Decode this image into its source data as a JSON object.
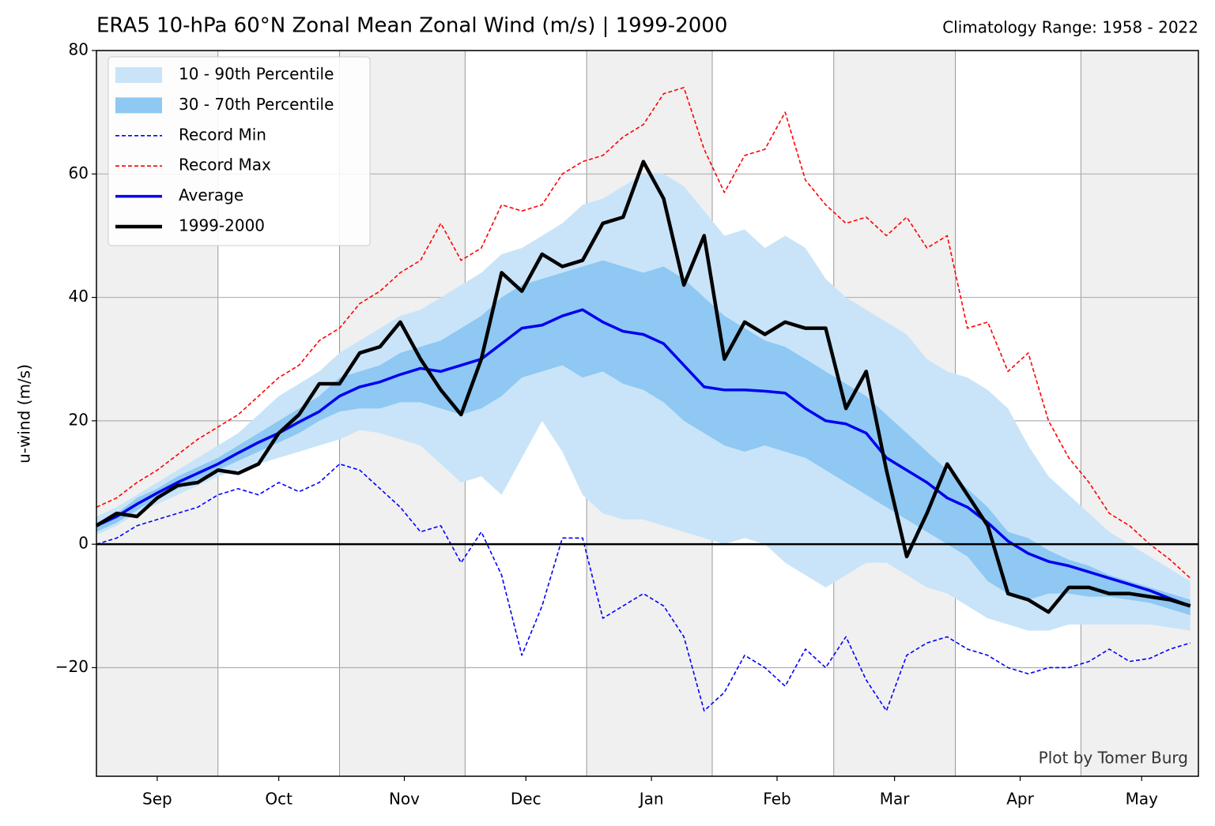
{
  "chart_data": {
    "type": "climatology",
    "title": "ERA5 10-hPa 60°N Zonal Mean Zonal Wind (m/s) | 1999-2000",
    "subtitle": "Climatology Range: 1958 - 2022",
    "ylabel": "u-wind (m/s)",
    "credit": "Plot by Tomer Burg",
    "x": [
      0,
      5,
      10,
      15,
      20,
      25,
      30,
      35,
      40,
      45,
      50,
      55,
      60,
      65,
      70,
      75,
      80,
      85,
      90,
      95,
      100,
      105,
      110,
      115,
      120,
      125,
      130,
      135,
      140,
      145,
      150,
      155,
      160,
      165,
      170,
      175,
      180,
      185,
      190,
      195,
      200,
      205,
      210,
      215,
      220,
      225,
      230,
      235,
      240,
      245,
      250,
      255,
      260,
      265,
      270
    ],
    "xlim": [
      0,
      272
    ],
    "xticks": [
      {
        "value": 15,
        "label": "Sep"
      },
      {
        "value": 45,
        "label": "Oct"
      },
      {
        "value": 76,
        "label": "Nov"
      },
      {
        "value": 106,
        "label": "Dec"
      },
      {
        "value": 137,
        "label": "Jan"
      },
      {
        "value": 168,
        "label": "Feb"
      },
      {
        "value": 197,
        "label": "Mar"
      },
      {
        "value": 228,
        "label": "Apr"
      },
      {
        "value": 258,
        "label": "May"
      }
    ],
    "xgrid": [
      30,
      60,
      91,
      121,
      152,
      182,
      212,
      243
    ],
    "ylim": [
      -37.6,
      80
    ],
    "yticks": [
      {
        "value": -20,
        "label": "−20"
      },
      0,
      20,
      40,
      60,
      80
    ],
    "grid": true,
    "zero_line": true,
    "legend": "upper left",
    "bands": [
      {
        "name": "10 - 90th Percentile",
        "color": "#c9e4f8",
        "lower": [
          1.5,
          3,
          5,
          6.5,
          8,
          9.5,
          11,
          12,
          13,
          14,
          15,
          16,
          17,
          18.5,
          18,
          17,
          16,
          13,
          10,
          11,
          8,
          14,
          20,
          15,
          8,
          5,
          4,
          4,
          3,
          2,
          1,
          0,
          1,
          0,
          -3,
          -5,
          -7,
          -5,
          -3,
          -3,
          -5,
          -7,
          -8,
          -10,
          -12,
          -13,
          -14,
          -14,
          -13,
          -13,
          -13,
          -13,
          -13,
          -13.5,
          -14
        ],
        "upper": [
          4.5,
          6,
          8,
          10,
          12,
          14,
          16,
          18,
          21,
          24,
          26,
          28,
          31,
          33,
          35,
          37,
          38,
          40,
          42,
          44,
          47,
          48,
          50,
          52,
          55,
          56,
          58,
          60,
          60,
          58,
          54,
          50,
          51,
          48,
          50,
          48,
          43,
          40,
          38,
          36,
          34,
          30,
          28,
          27,
          25,
          22,
          16,
          11,
          8,
          5,
          2,
          0,
          -2,
          -4,
          -6
        ]
      },
      {
        "name": "30 - 70th Percentile",
        "color": "#8ec8f3",
        "lower": [
          2,
          3.5,
          5.5,
          7.5,
          9,
          10.5,
          12,
          13.5,
          15,
          16.5,
          18,
          20,
          21.5,
          22,
          22,
          23,
          23,
          22,
          21,
          22,
          24,
          27,
          28,
          29,
          27,
          28,
          26,
          25,
          23,
          20,
          18,
          16,
          15,
          16,
          15,
          14,
          12,
          10,
          8,
          6,
          4,
          2,
          0,
          -2,
          -6,
          -8,
          -9,
          -8,
          -8,
          -8.5,
          -8.5,
          -9,
          -9.5,
          -10.5,
          -11.5
        ],
        "upper": [
          3.5,
          5,
          7.5,
          9,
          11,
          12.5,
          14,
          16,
          18,
          20,
          22,
          24,
          27,
          28,
          29,
          31,
          32,
          33,
          35,
          37,
          40,
          42,
          43,
          44,
          45,
          46,
          45,
          44,
          45,
          43,
          40,
          37,
          35,
          33,
          32,
          30,
          28,
          26,
          24,
          21,
          18,
          15,
          12,
          9,
          6,
          2,
          1,
          -1,
          -2.5,
          -3.5,
          -5,
          -6,
          -7,
          -8,
          -9
        ]
      }
    ],
    "series": [
      {
        "name": "Record Min",
        "color": "#0000ff",
        "style": "dashed",
        "width": 1.6,
        "values": [
          0,
          1,
          3,
          4,
          5,
          6,
          8,
          9,
          8,
          10,
          8.5,
          10,
          13,
          12,
          9,
          6,
          2,
          3,
          -3,
          2,
          -5,
          -18,
          -10,
          1,
          1,
          -12,
          -10,
          -8,
          -10,
          -15,
          -27,
          -24,
          -18,
          -20,
          -23,
          -17,
          -20,
          -15,
          -22,
          -27,
          -18,
          -16,
          -15,
          -17,
          -18,
          -20,
          -21,
          -20,
          -20,
          -19,
          -17,
          -19,
          -18.5,
          -17,
          -16
        ]
      },
      {
        "name": "Record Max",
        "color": "#ff0000",
        "style": "dashed",
        "width": 1.6,
        "values": [
          6,
          7.5,
          10,
          12,
          14.5,
          17,
          19,
          21,
          24,
          27,
          29,
          33,
          35,
          39,
          41,
          44,
          46,
          52,
          46,
          48,
          55,
          54,
          55,
          60,
          62,
          63,
          66,
          68,
          73,
          74,
          64,
          57,
          63,
          64,
          70,
          59,
          55,
          52,
          53,
          50,
          53,
          48,
          50,
          35,
          36,
          28,
          31,
          20,
          14,
          10,
          5,
          3,
          0,
          -2.5,
          -5.5
        ]
      },
      {
        "name": "Average",
        "color": "#0000ee",
        "style": "solid",
        "width": 3.5,
        "values": [
          3,
          4.5,
          6.5,
          8.3,
          10,
          11.5,
          13,
          14.8,
          16.5,
          18,
          19.8,
          21.5,
          24,
          25.5,
          26.3,
          27.5,
          28.5,
          28,
          29,
          30,
          32.5,
          35,
          35.5,
          37,
          38,
          36,
          34.5,
          34,
          32.5,
          29,
          25.5,
          25,
          25,
          24.8,
          24.5,
          22,
          20,
          19.5,
          18,
          14,
          12,
          10,
          7.5,
          6,
          3.5,
          0.5,
          -1.5,
          -2.8,
          -3.5,
          -4.5,
          -5.5,
          -6.5,
          -7.5,
          -8.8,
          -10
        ]
      },
      {
        "name": "1999-2000",
        "color": "#000000",
        "style": "solid",
        "width": 4.5,
        "values": [
          3,
          5,
          4.5,
          7.5,
          9.5,
          10,
          12,
          11.5,
          13,
          18,
          21,
          26,
          26,
          31,
          32,
          36,
          30,
          25,
          21,
          30,
          44,
          41,
          47,
          45,
          46,
          52,
          53,
          62,
          56,
          42,
          50,
          30,
          36,
          34,
          36,
          35,
          35,
          22,
          28,
          12,
          -2,
          5,
          13,
          8,
          3,
          -8,
          -9,
          -11,
          -7,
          -7,
          -8,
          -8,
          -8.5,
          -9,
          -10
        ]
      }
    ]
  }
}
